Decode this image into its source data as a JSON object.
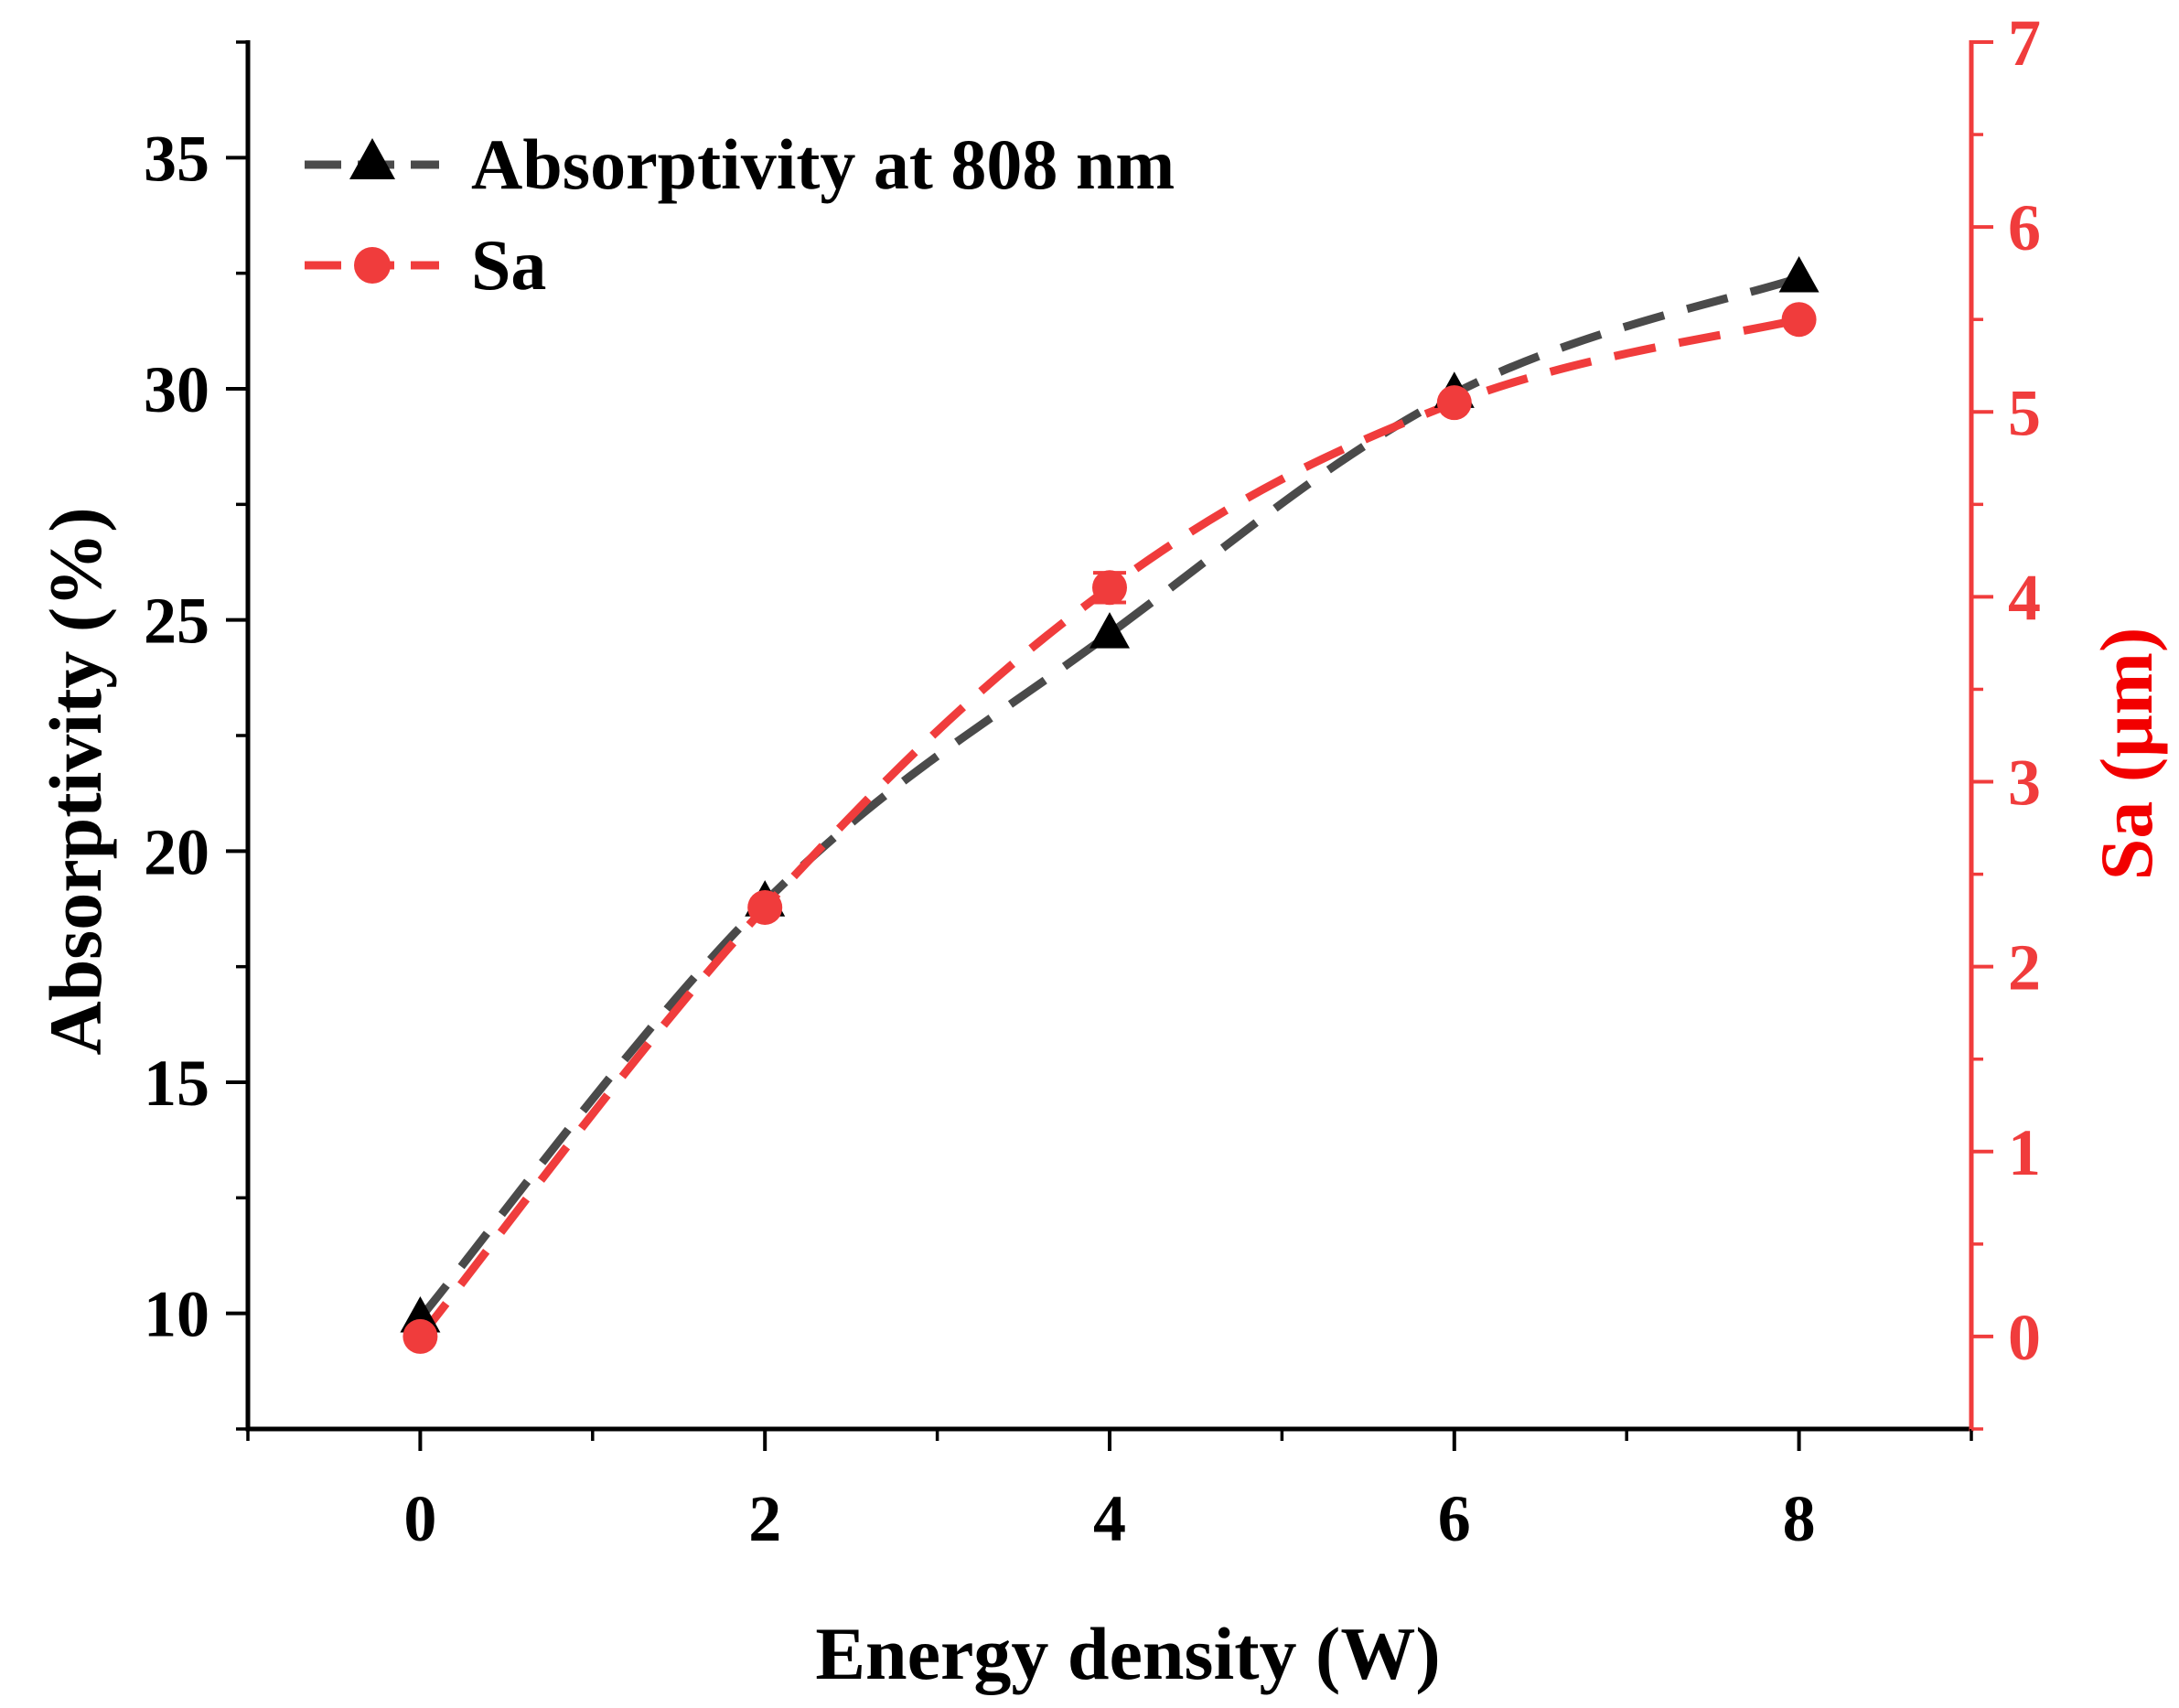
{
  "chart_data": {
    "type": "line",
    "xlabel": "Energy density (W)",
    "ylabel_left": "Absorptivity (%)",
    "ylabel_right": "Sa (μm)",
    "x": [
      0,
      2,
      4,
      6,
      8
    ],
    "xlim": [
      -1,
      9
    ],
    "xticks": [
      0,
      2,
      4,
      6,
      8
    ],
    "xtick_labels": [
      "0",
      "2",
      "4",
      "6",
      "8"
    ],
    "ylim_left": [
      7.5,
      37.5
    ],
    "yticks_left": [
      10,
      15,
      20,
      25,
      30,
      35
    ],
    "ytick_labels_left": [
      "10",
      "15",
      "20",
      "25",
      "30",
      "35"
    ],
    "ylim_right": [
      -0.5,
      7
    ],
    "yticks_right": [
      0,
      1,
      2,
      3,
      4,
      5,
      6,
      7
    ],
    "ytick_labels_right": [
      "0",
      "1",
      "2",
      "3",
      "4",
      "5",
      "6",
      "7"
    ],
    "grid": false,
    "legend_position": "top-left",
    "series": [
      {
        "name": "Absorptivity at 808 nm",
        "axis": "left",
        "marker": "triangle",
        "color": "#000000",
        "line_color": "#4a4a4a",
        "line_style": "dashed",
        "values": [
          9.9,
          18.9,
          24.7,
          29.9,
          32.4
        ]
      },
      {
        "name": "Sa",
        "axis": "right",
        "marker": "circle",
        "color": "#f03c3c",
        "line_color": "#f03c3c",
        "line_style": "dashed",
        "values": [
          0.0,
          2.32,
          4.05,
          5.05,
          5.5
        ],
        "error": [
          0,
          0,
          0.08,
          0,
          0
        ]
      }
    ]
  }
}
